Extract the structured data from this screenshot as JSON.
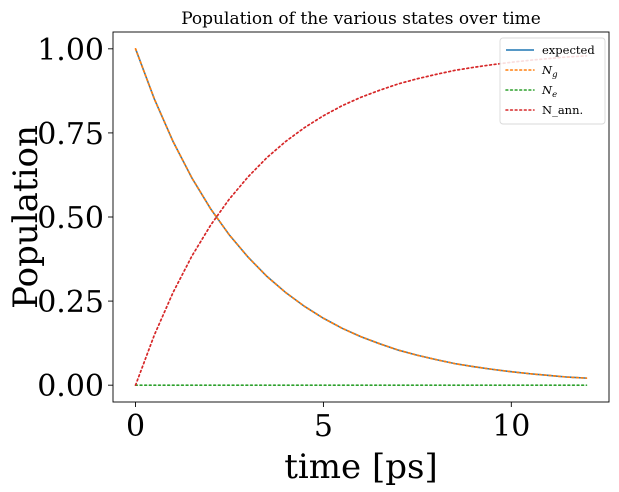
{
  "chart_data": {
    "type": "line",
    "title": "Population of the various states over time",
    "xlabel": "time [ps]",
    "ylabel": "Population",
    "xlim": [
      -0.6,
      12.6
    ],
    "ylim": [
      -0.05,
      1.05
    ],
    "xticks": [
      0,
      5,
      10
    ],
    "xtick_labels": [
      "0",
      "5",
      "10"
    ],
    "yticks": [
      0.0,
      0.25,
      0.5,
      0.75,
      1.0
    ],
    "ytick_labels": [
      "0.00",
      "0.25",
      "0.50",
      "0.75",
      "1.00"
    ],
    "grid": false,
    "legend_position": "top-right",
    "x": [
      0,
      0.5,
      1,
      1.5,
      2,
      2.5,
      3,
      3.5,
      4,
      4.5,
      5,
      5.5,
      6,
      6.5,
      7,
      7.5,
      8,
      8.5,
      9,
      9.5,
      10,
      10.5,
      11,
      11.5,
      12
    ],
    "series": [
      {
        "name": "expected",
        "style": "solid",
        "color": "#1f77b4",
        "values": [
          1.0,
          0.851,
          0.724,
          0.616,
          0.524,
          0.446,
          0.38,
          0.323,
          0.275,
          0.234,
          0.199,
          0.169,
          0.144,
          0.123,
          0.104,
          0.089,
          0.076,
          0.064,
          0.055,
          0.047,
          0.04,
          0.034,
          0.029,
          0.024,
          0.021
        ]
      },
      {
        "name": "N_g",
        "style": "dotted",
        "color": "#ff7f0e",
        "values": [
          1.0,
          0.851,
          0.724,
          0.616,
          0.524,
          0.446,
          0.38,
          0.323,
          0.275,
          0.234,
          0.199,
          0.169,
          0.144,
          0.123,
          0.104,
          0.089,
          0.076,
          0.064,
          0.055,
          0.047,
          0.04,
          0.034,
          0.029,
          0.024,
          0.021
        ]
      },
      {
        "name": "N_e",
        "style": "dotted",
        "color": "#2ca02c",
        "values": [
          0,
          0,
          0,
          0,
          0,
          0,
          0,
          0,
          0,
          0,
          0,
          0,
          0,
          0,
          0,
          0,
          0,
          0,
          0,
          0,
          0,
          0,
          0,
          0,
          0
        ]
      },
      {
        "name": "N_ann.",
        "style": "dotted",
        "color": "#d62728",
        "values": [
          0.0,
          0.149,
          0.276,
          0.384,
          0.476,
          0.554,
          0.62,
          0.677,
          0.725,
          0.766,
          0.801,
          0.831,
          0.856,
          0.877,
          0.896,
          0.911,
          0.924,
          0.936,
          0.945,
          0.953,
          0.96,
          0.966,
          0.971,
          0.976,
          0.979
        ]
      }
    ],
    "legend_entries": [
      {
        "key": "expected",
        "base": "expected",
        "sub": ""
      },
      {
        "key": "N_g",
        "base": "N",
        "sub": "g"
      },
      {
        "key": "N_e",
        "base": "N",
        "sub": "e"
      },
      {
        "key": "N_ann.",
        "base": "N_ann.",
        "sub": ""
      }
    ]
  }
}
